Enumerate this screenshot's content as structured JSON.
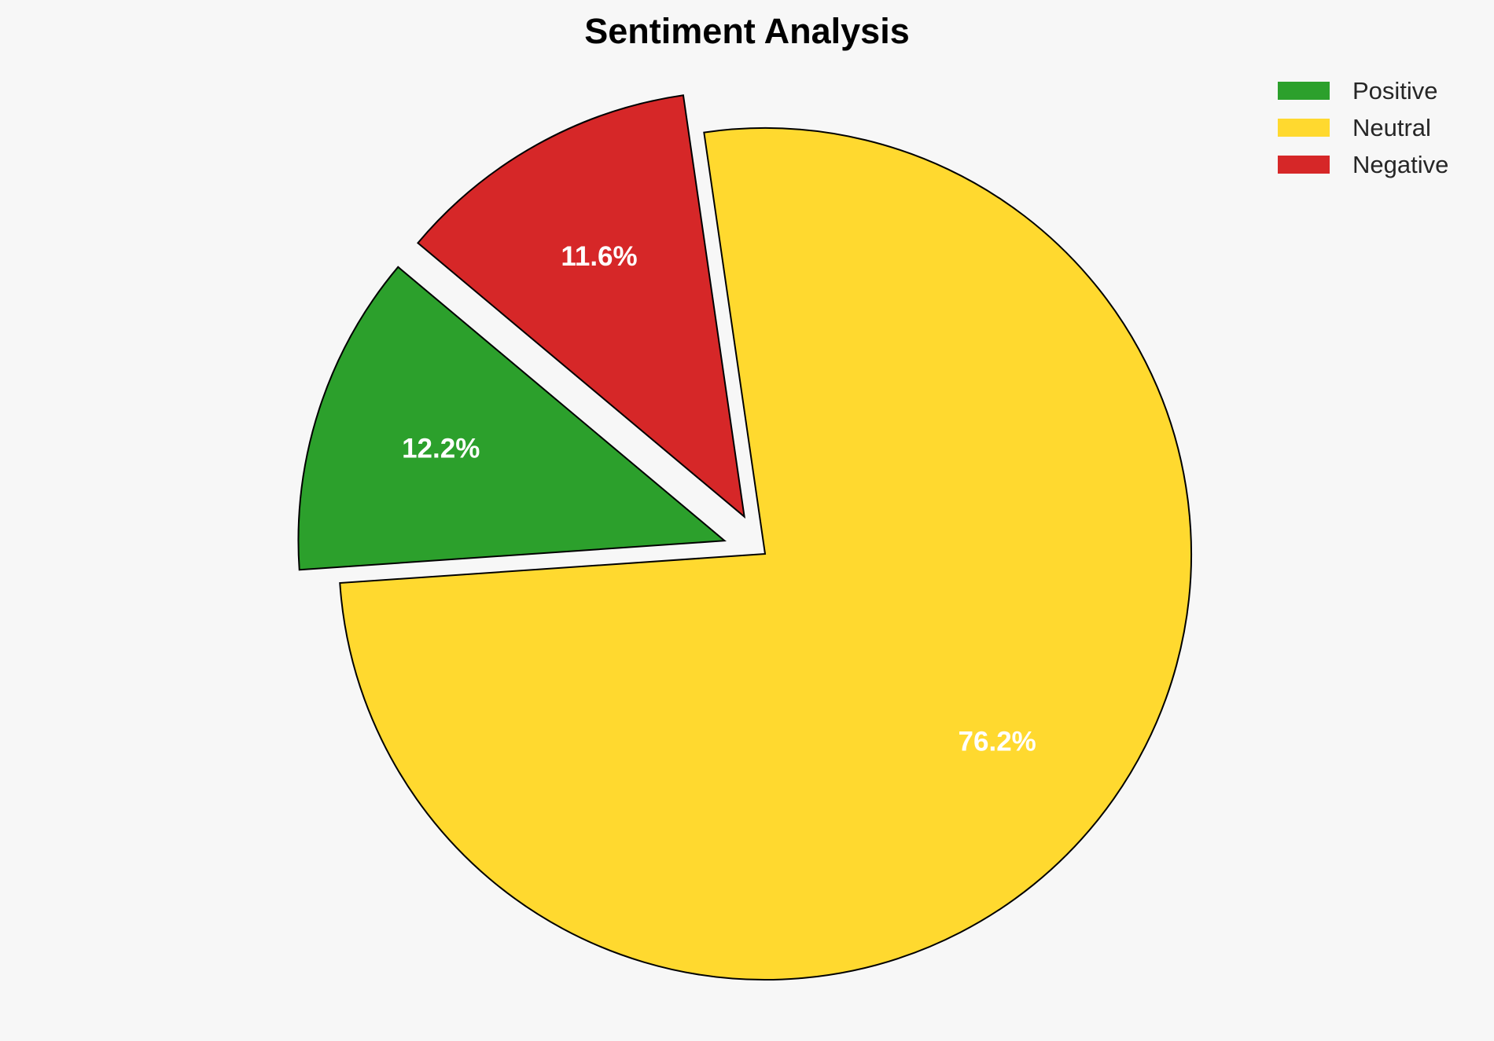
{
  "chart_data": {
    "type": "pie",
    "title": "Sentiment Analysis",
    "categories": [
      "Positive",
      "Neutral",
      "Negative"
    ],
    "values": [
      12.2,
      76.2,
      11.6
    ],
    "labels": [
      "12.2%",
      "76.2%",
      "11.6%"
    ],
    "colors": [
      "#2ca02c",
      "#ffd92f",
      "#d62728"
    ],
    "explode": [
      0.1,
      0,
      0.1
    ],
    "start_angle": 140,
    "direction": "counterclockwise",
    "legend": {
      "placement": "top-right",
      "entries": [
        "Positive",
        "Neutral",
        "Negative"
      ]
    }
  }
}
